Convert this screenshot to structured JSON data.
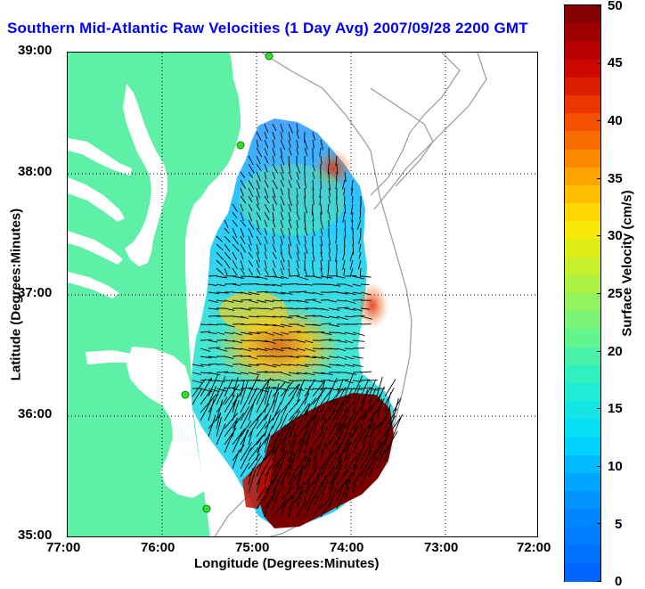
{
  "title": "Southern Mid-Atlantic Raw Velocities (1 Day Avg) 2007/09/28 2200 GMT",
  "xlabel": "Longitude (Degrees:Minutes)",
  "ylabel": "Latitude (Degrees:Minutes)",
  "x_ticks": [
    "77:00",
    "76:00",
    "75:00",
    "74:00",
    "73:00",
    "72:00"
  ],
  "y_ticks": [
    "39:00",
    "38:00",
    "37:00",
    "36:00",
    "35:00"
  ],
  "colorbar": {
    "label": "Surface Velocity (cm/s)",
    "ticks": [
      "50",
      "45",
      "40",
      "35",
      "30",
      "25",
      "20",
      "15",
      "10",
      "5",
      "0"
    ],
    "range": [
      0,
      50
    ]
  },
  "colors": {
    "land": "#5ef0a6",
    "water": "#ffffff",
    "title": "#0000ff",
    "site_marker": "#33dd33",
    "isobath": "#999999"
  },
  "map_data": {
    "lon_range": [
      -77,
      -72
    ],
    "lat_range": [
      35,
      39
    ],
    "grid": "dotted",
    "hf_radar_sites": 4
  }
}
